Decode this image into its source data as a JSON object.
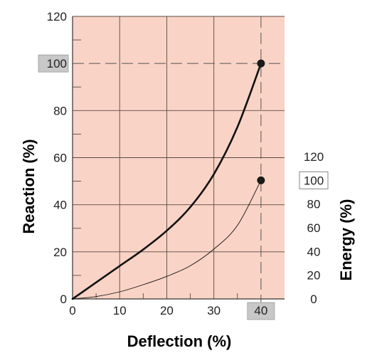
{
  "chart_data": {
    "type": "line",
    "title": "",
    "xlabel": "Deflection (%)",
    "ylabel": "Reaction (%)",
    "y2label": "Energy (%)",
    "xlim": [
      0,
      45
    ],
    "ylim": [
      0,
      120
    ],
    "y2lim": [
      0,
      120
    ],
    "x_ticks": [
      0,
      10,
      20,
      30,
      40
    ],
    "y_ticks": [
      0,
      20,
      40,
      60,
      80,
      100,
      120
    ],
    "y2_ticks": [
      0,
      20,
      40,
      60,
      80,
      100,
      120
    ],
    "highlighted_x": "40",
    "highlighted_y": "100",
    "highlighted_y2": "100",
    "grid": true,
    "plot_background": "#f9d3c5",
    "series": [
      {
        "axis": "left",
        "color": "#111111",
        "x": [
          0,
          5,
          10,
          15,
          20,
          25,
          30,
          35,
          40
        ],
        "y": [
          0,
          7,
          14,
          21,
          29,
          39,
          53,
          73,
          100
        ]
      },
      {
        "axis": "right",
        "color": "#111111",
        "x": [
          0,
          5,
          10,
          15,
          20,
          25,
          30,
          35,
          40
        ],
        "y": [
          0,
          2,
          6,
          12,
          19,
          28,
          42,
          62,
          100
        ]
      }
    ],
    "markers": [
      {
        "axis": "left",
        "x": 40,
        "y": 100
      },
      {
        "axis": "right",
        "x": 40,
        "y": 100
      }
    ]
  }
}
